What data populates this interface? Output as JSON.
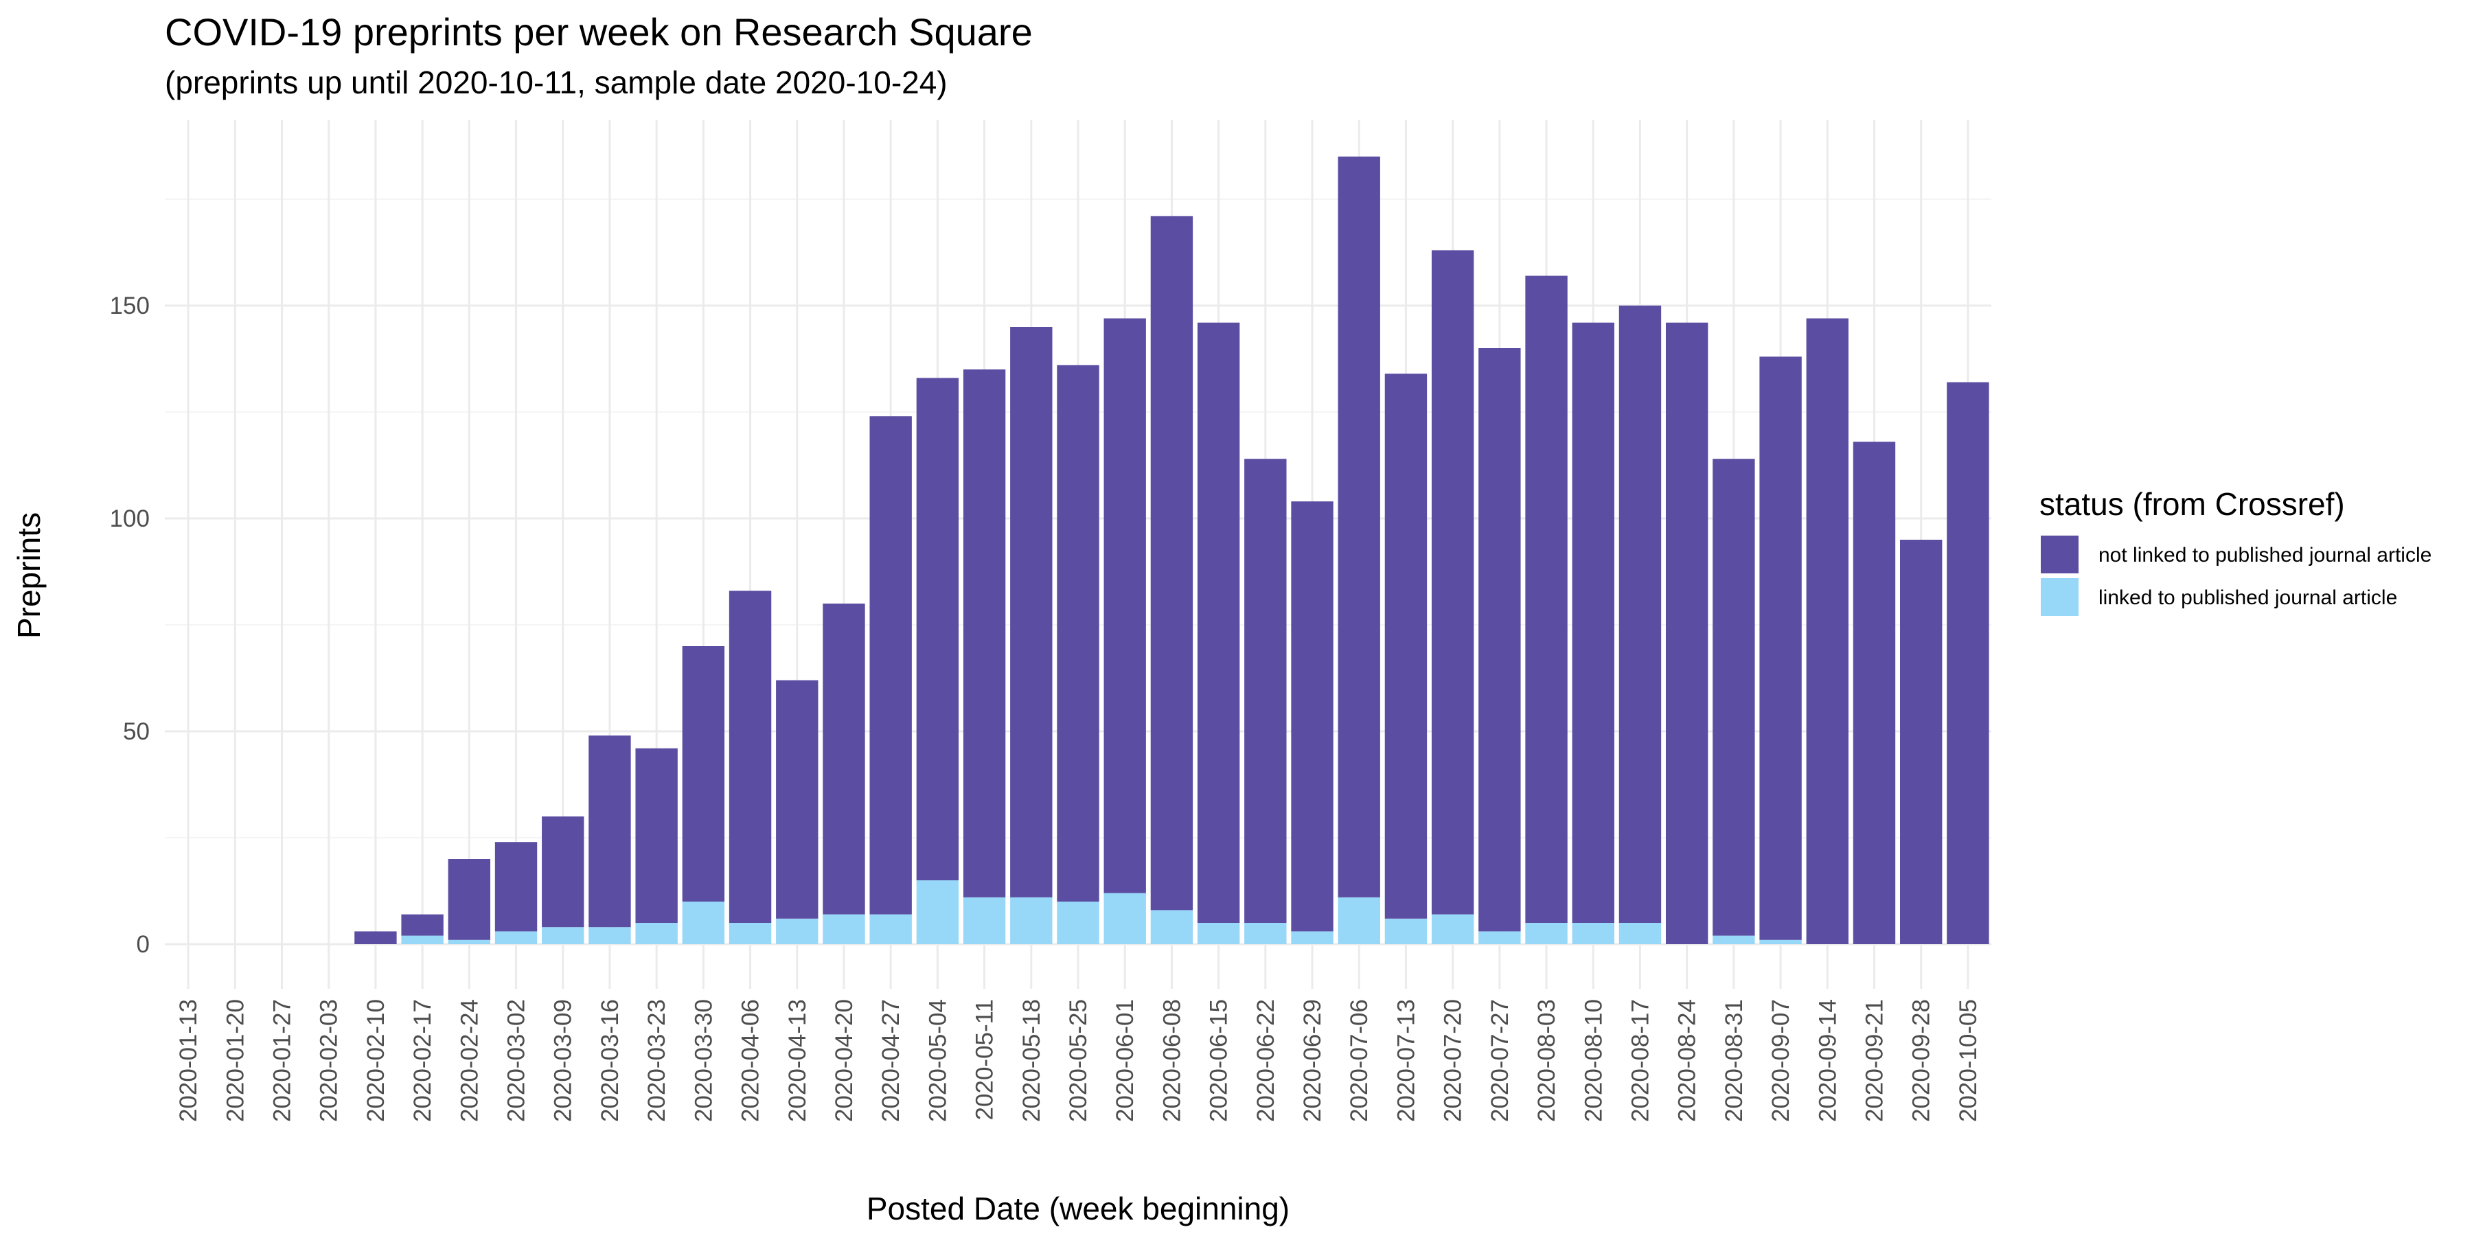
{
  "chart_data": {
    "type": "bar",
    "stacked": true,
    "title": "COVID-19 preprints per week on Research Square",
    "subtitle": "(preprints up until 2020-10-11, sample date 2020-10-24)",
    "xlabel": "Posted Date (week beginning)",
    "ylabel": "Preprints",
    "ylim": [
      -10,
      190
    ],
    "yticks": [
      0,
      50,
      100,
      150
    ],
    "grid": true,
    "legend_position": "right",
    "legend_title": "status (from Crossref)",
    "categories": [
      "2020-01-13",
      "2020-01-20",
      "2020-01-27",
      "2020-02-03",
      "2020-02-10",
      "2020-02-17",
      "2020-02-24",
      "2020-03-02",
      "2020-03-09",
      "2020-03-16",
      "2020-03-23",
      "2020-03-30",
      "2020-04-06",
      "2020-04-13",
      "2020-04-20",
      "2020-04-27",
      "2020-05-04",
      "2020-05-11",
      "2020-05-18",
      "2020-05-25",
      "2020-06-01",
      "2020-06-08",
      "2020-06-15",
      "2020-06-22",
      "2020-06-29",
      "2020-07-06",
      "2020-07-13",
      "2020-07-20",
      "2020-07-27",
      "2020-08-03",
      "2020-08-10",
      "2020-08-17",
      "2020-08-24",
      "2020-08-31",
      "2020-09-07",
      "2020-09-14",
      "2020-09-21",
      "2020-09-28",
      "2020-10-05"
    ],
    "series": [
      {
        "name": "not linked to published journal article",
        "color": "#5b4ea2",
        "values": [
          0,
          0,
          0,
          0,
          3,
          5,
          19,
          21,
          26,
          45,
          41,
          60,
          78,
          56,
          73,
          117,
          118,
          124,
          134,
          126,
          135,
          163,
          141,
          109,
          101,
          174,
          128,
          156,
          137,
          152,
          141,
          145,
          146,
          112,
          137,
          147,
          118,
          95,
          132
        ]
      },
      {
        "name": "linked to published journal article",
        "color": "#97d7f7",
        "values": [
          0,
          0,
          0,
          0,
          0,
          2,
          1,
          3,
          4,
          4,
          5,
          10,
          5,
          6,
          7,
          7,
          15,
          11,
          11,
          10,
          12,
          8,
          5,
          5,
          3,
          11,
          6,
          7,
          3,
          5,
          5,
          5,
          0,
          2,
          1,
          0,
          0,
          0,
          0
        ]
      }
    ]
  },
  "colors": {
    "gridMajor": "#ebebeb",
    "gridMinor": "#f5f5f5",
    "background": "#ffffff"
  }
}
